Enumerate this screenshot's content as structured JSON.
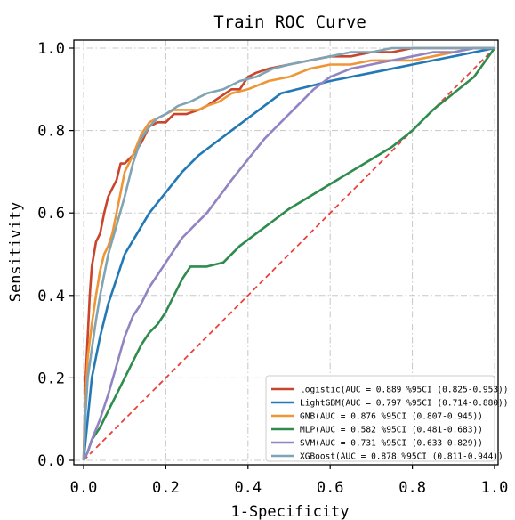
{
  "chart_data": {
    "type": "line",
    "title": "Train ROC Curve",
    "xlabel": "1-Specificity",
    "ylabel": "Sensitivity",
    "xlim": [
      0,
      1
    ],
    "ylim": [
      0,
      1
    ],
    "x_ticks": [
      "0.0",
      "0.2",
      "0.4",
      "0.6",
      "0.8",
      "1.0"
    ],
    "y_ticks": [
      "0.0",
      "0.2",
      "0.4",
      "0.6",
      "0.8",
      "1.0"
    ],
    "grid": true,
    "legend_position": "bottom-right",
    "reference_line": {
      "x": [
        0,
        1
      ],
      "y": [
        0,
        1
      ],
      "color": "#e8423c",
      "style": "dashed"
    },
    "series": [
      {
        "name": "logistic(AUC = 0.889 %95CI (0.825-0.953))",
        "color": "#c9452c",
        "x": [
          0,
          0.005,
          0.01,
          0.015,
          0.02,
          0.03,
          0.04,
          0.05,
          0.06,
          0.07,
          0.08,
          0.09,
          0.1,
          0.12,
          0.14,
          0.16,
          0.18,
          0.2,
          0.22,
          0.25,
          0.28,
          0.3,
          0.33,
          0.36,
          0.38,
          0.4,
          0.42,
          0.45,
          0.5,
          0.55,
          0.6,
          0.65,
          0.7,
          0.75,
          0.8,
          0.9,
          1.0
        ],
        "y": [
          0,
          0.2,
          0.3,
          0.4,
          0.47,
          0.53,
          0.55,
          0.6,
          0.64,
          0.66,
          0.68,
          0.72,
          0.72,
          0.74,
          0.77,
          0.81,
          0.82,
          0.82,
          0.84,
          0.84,
          0.85,
          0.86,
          0.88,
          0.9,
          0.9,
          0.93,
          0.94,
          0.95,
          0.96,
          0.97,
          0.98,
          0.98,
          0.99,
          0.99,
          1.0,
          1.0,
          1.0
        ]
      },
      {
        "name": "LightGBM(AUC = 0.797 %95CI (0.714-0.880))",
        "color": "#2279b5",
        "x": [
          0,
          0.01,
          0.02,
          0.04,
          0.06,
          0.08,
          0.1,
          0.13,
          0.16,
          0.2,
          0.24,
          0.28,
          0.32,
          0.36,
          0.4,
          0.44,
          0.48,
          0.52,
          0.56,
          0.6,
          0.65,
          0.7,
          0.75,
          0.8,
          0.85,
          0.9,
          0.95,
          1.0
        ],
        "y": [
          0,
          0.1,
          0.2,
          0.3,
          0.38,
          0.44,
          0.5,
          0.55,
          0.6,
          0.65,
          0.7,
          0.74,
          0.77,
          0.8,
          0.83,
          0.86,
          0.89,
          0.9,
          0.91,
          0.92,
          0.93,
          0.94,
          0.95,
          0.96,
          0.97,
          0.98,
          0.99,
          1.0
        ]
      },
      {
        "name": "GNB(AUC = 0.876 %95CI (0.807-0.945))",
        "color": "#ef9535",
        "x": [
          0,
          0.005,
          0.01,
          0.02,
          0.03,
          0.04,
          0.05,
          0.06,
          0.07,
          0.08,
          0.09,
          0.1,
          0.12,
          0.14,
          0.16,
          0.18,
          0.2,
          0.22,
          0.25,
          0.28,
          0.3,
          0.33,
          0.36,
          0.4,
          0.45,
          0.5,
          0.55,
          0.6,
          0.65,
          0.7,
          0.75,
          0.8,
          0.85,
          0.9,
          0.95,
          1.0
        ],
        "y": [
          0,
          0.15,
          0.25,
          0.33,
          0.4,
          0.46,
          0.5,
          0.52,
          0.55,
          0.6,
          0.65,
          0.7,
          0.74,
          0.79,
          0.82,
          0.83,
          0.84,
          0.85,
          0.85,
          0.85,
          0.86,
          0.87,
          0.89,
          0.9,
          0.92,
          0.93,
          0.95,
          0.96,
          0.96,
          0.97,
          0.97,
          0.97,
          0.98,
          0.99,
          1.0,
          1.0
        ]
      },
      {
        "name": "MLP(AUC = 0.582 %95CI (0.481-0.683))",
        "color": "#2f8b4e",
        "x": [
          0,
          0.01,
          0.02,
          0.04,
          0.06,
          0.08,
          0.1,
          0.12,
          0.14,
          0.16,
          0.18,
          0.2,
          0.22,
          0.24,
          0.26,
          0.3,
          0.34,
          0.38,
          0.42,
          0.46,
          0.5,
          0.55,
          0.6,
          0.65,
          0.7,
          0.75,
          0.8,
          0.85,
          0.9,
          0.95,
          1.0
        ],
        "y": [
          0,
          0.02,
          0.05,
          0.08,
          0.12,
          0.16,
          0.2,
          0.24,
          0.28,
          0.31,
          0.33,
          0.36,
          0.4,
          0.44,
          0.47,
          0.47,
          0.48,
          0.52,
          0.55,
          0.58,
          0.61,
          0.64,
          0.67,
          0.7,
          0.73,
          0.76,
          0.8,
          0.85,
          0.89,
          0.93,
          1.0
        ]
      },
      {
        "name": "SVM(AUC = 0.731 %95CI (0.633-0.829))",
        "color": "#9284c2",
        "x": [
          0,
          0.01,
          0.02,
          0.04,
          0.06,
          0.08,
          0.1,
          0.12,
          0.14,
          0.16,
          0.18,
          0.2,
          0.22,
          0.24,
          0.27,
          0.3,
          0.33,
          0.36,
          0.4,
          0.44,
          0.48,
          0.52,
          0.56,
          0.6,
          0.65,
          0.7,
          0.75,
          0.8,
          0.85,
          0.9,
          0.95,
          1.0
        ],
        "y": [
          0,
          0.02,
          0.05,
          0.1,
          0.16,
          0.23,
          0.3,
          0.35,
          0.38,
          0.42,
          0.45,
          0.48,
          0.51,
          0.54,
          0.57,
          0.6,
          0.64,
          0.68,
          0.73,
          0.78,
          0.82,
          0.86,
          0.9,
          0.93,
          0.95,
          0.96,
          0.97,
          0.98,
          0.99,
          0.99,
          1.0,
          1.0
        ]
      },
      {
        "name": "XGBoost(AUC = 0.878 %95CI (0.811-0.944))",
        "color": "#7ea4b5",
        "x": [
          0,
          0.005,
          0.01,
          0.02,
          0.03,
          0.04,
          0.05,
          0.06,
          0.08,
          0.1,
          0.12,
          0.14,
          0.16,
          0.18,
          0.2,
          0.23,
          0.26,
          0.3,
          0.34,
          0.38,
          0.42,
          0.46,
          0.5,
          0.55,
          0.6,
          0.65,
          0.7,
          0.75,
          0.8,
          0.9,
          1.0
        ],
        "y": [
          0,
          0.12,
          0.2,
          0.27,
          0.34,
          0.4,
          0.45,
          0.5,
          0.57,
          0.64,
          0.72,
          0.78,
          0.81,
          0.83,
          0.84,
          0.86,
          0.87,
          0.89,
          0.9,
          0.92,
          0.93,
          0.95,
          0.96,
          0.97,
          0.98,
          0.99,
          0.99,
          1.0,
          1.0,
          1.0,
          1.0
        ]
      }
    ]
  }
}
